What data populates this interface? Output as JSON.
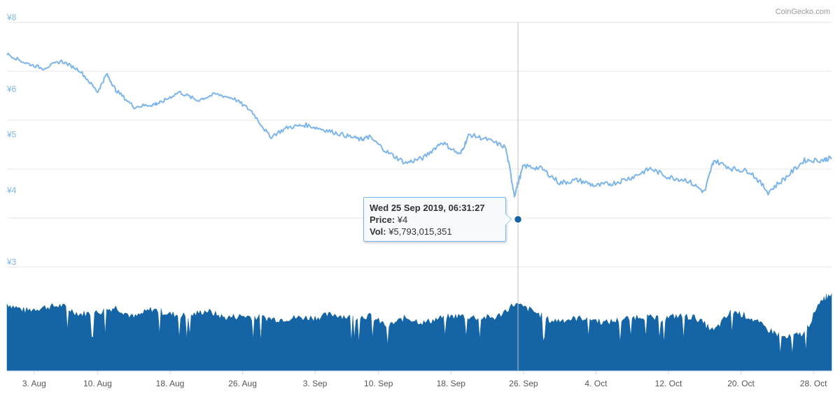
{
  "credit": "CoinGecko.com",
  "colors": {
    "price_line": "#7cb5ec",
    "volume_fill": "#1565a6",
    "grid": "#e6e6e6",
    "axis_label": "#7cb5ec",
    "marker": "#1565a6"
  },
  "tooltip": {
    "date": "Wed 25 Sep 2019, 06:31:27",
    "price_label": "Price:",
    "price_value": "¥4",
    "vol_label": "Vol:",
    "vol_value": "¥5,793,015,351"
  },
  "chart_data": {
    "type": "line",
    "title": "",
    "price_axis": {
      "ticks": [
        "¥8",
        "¥6",
        "¥5",
        "¥4",
        "¥3"
      ],
      "grid_lines": 6,
      "scale": "logarithmic",
      "ylim": [
        3,
        8
      ]
    },
    "x_ticks": [
      "3. Aug",
      "10. Aug",
      "18. Aug",
      "26. Aug",
      "3. Sep",
      "10. Sep",
      "18. Sep",
      "26. Sep",
      "4. Oct",
      "12. Oct",
      "20. Oct",
      "28. Oct"
    ],
    "xlim": [
      "2019-07-31",
      "2019-10-30"
    ],
    "series": [
      {
        "name": "Price",
        "kind": "line",
        "x": [
          "2019-07-31",
          "2019-08-02",
          "2019-08-04",
          "2019-08-06",
          "2019-08-08",
          "2019-08-10",
          "2019-08-11",
          "2019-08-12",
          "2019-08-14",
          "2019-08-16",
          "2019-08-17",
          "2019-08-19",
          "2019-08-21",
          "2019-08-23",
          "2019-08-25",
          "2019-08-27",
          "2019-08-29",
          "2019-08-31",
          "2019-09-02",
          "2019-09-04",
          "2019-09-06",
          "2019-09-08",
          "2019-09-09",
          "2019-09-11",
          "2019-09-13",
          "2019-09-15",
          "2019-09-17",
          "2019-09-19",
          "2019-09-20",
          "2019-09-22",
          "2019-09-24",
          "2019-09-25",
          "2019-09-26",
          "2019-09-28",
          "2019-09-30",
          "2019-10-02",
          "2019-10-04",
          "2019-10-06",
          "2019-10-08",
          "2019-10-10",
          "2019-10-12",
          "2019-10-14",
          "2019-10-16",
          "2019-10-17",
          "2019-10-19",
          "2019-10-21",
          "2019-10-23",
          "2019-10-25",
          "2019-10-27",
          "2019-10-29",
          "2019-10-30"
        ],
        "y": [
          7.05,
          6.8,
          6.65,
          6.85,
          6.6,
          6.05,
          6.5,
          6.1,
          5.7,
          5.75,
          5.8,
          6.05,
          5.85,
          6.0,
          5.9,
          5.6,
          5.05,
          5.25,
          5.3,
          5.2,
          5.1,
          5.0,
          5.05,
          4.75,
          4.55,
          4.65,
          4.95,
          4.7,
          5.1,
          5.0,
          4.85,
          4.0,
          4.5,
          4.45,
          4.2,
          4.25,
          4.15,
          4.2,
          4.3,
          4.45,
          4.3,
          4.25,
          4.05,
          4.6,
          4.45,
          4.4,
          4.05,
          4.3,
          4.6,
          4.6,
          4.65
        ]
      },
      {
        "name": "Vol",
        "kind": "area",
        "x": [
          "2019-07-31",
          "2019-08-02",
          "2019-08-04",
          "2019-08-06",
          "2019-08-08",
          "2019-08-10",
          "2019-08-12",
          "2019-08-14",
          "2019-08-16",
          "2019-08-18",
          "2019-08-20",
          "2019-08-22",
          "2019-08-24",
          "2019-08-26",
          "2019-08-28",
          "2019-08-30",
          "2019-09-01",
          "2019-09-03",
          "2019-09-05",
          "2019-09-07",
          "2019-09-09",
          "2019-09-11",
          "2019-09-13",
          "2019-09-15",
          "2019-09-17",
          "2019-09-19",
          "2019-09-21",
          "2019-09-23",
          "2019-09-25",
          "2019-09-27",
          "2019-09-29",
          "2019-10-01",
          "2019-10-03",
          "2019-10-05",
          "2019-10-07",
          "2019-10-09",
          "2019-10-11",
          "2019-10-13",
          "2019-10-15",
          "2019-10-17",
          "2019-10-19",
          "2019-10-21",
          "2019-10-23",
          "2019-10-25",
          "2019-10-27",
          "2019-10-29",
          "2019-10-30"
        ],
        "y": [
          0.78,
          0.7,
          0.74,
          0.76,
          0.66,
          0.68,
          0.74,
          0.62,
          0.72,
          0.66,
          0.64,
          0.7,
          0.62,
          0.64,
          0.62,
          0.6,
          0.62,
          0.62,
          0.66,
          0.62,
          0.64,
          0.52,
          0.62,
          0.56,
          0.62,
          0.64,
          0.62,
          0.62,
          0.78,
          0.7,
          0.58,
          0.6,
          0.62,
          0.56,
          0.6,
          0.64,
          0.6,
          0.64,
          0.62,
          0.46,
          0.7,
          0.62,
          0.48,
          0.38,
          0.44,
          0.84,
          0.9
        ]
      }
    ]
  }
}
